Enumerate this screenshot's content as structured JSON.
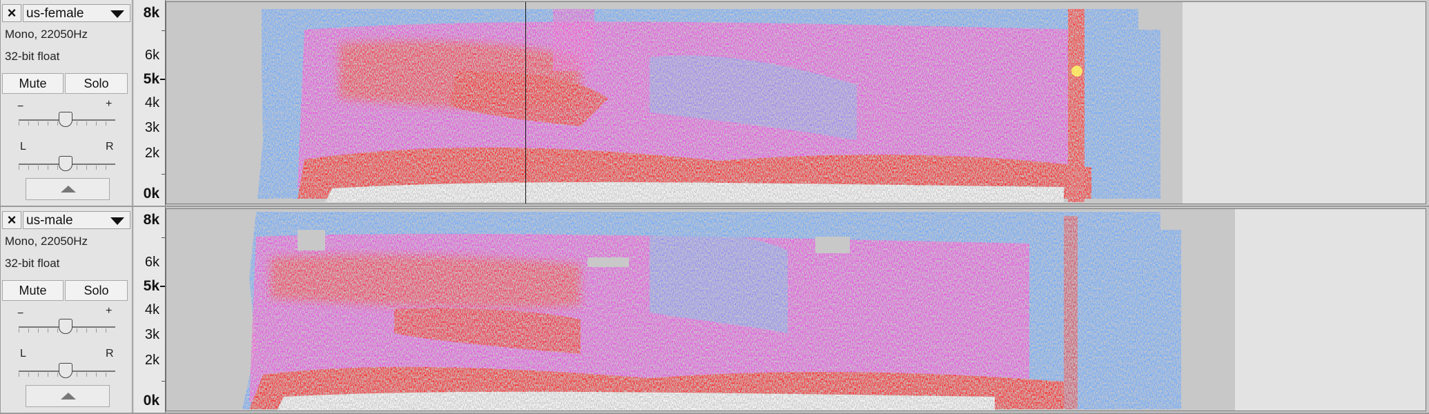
{
  "colors": {
    "spectro_low": "#6aa8ff",
    "spectro_mid": "#ff33dd",
    "spectro_high": "#ff2222",
    "spectro_peak": "#ffffff",
    "empty_region": "#c8c8c8",
    "beyond_end": "#e3e3e3"
  },
  "tracks": [
    {
      "name": "us-female",
      "format": "Mono, 22050Hz",
      "sample_format": "32-bit float",
      "mute_label": "Mute",
      "solo_label": "Solo",
      "gain_minus": "−",
      "gain_plus": "+",
      "pan_left": "L",
      "pan_right": "R",
      "close_icon": "×",
      "frequency_labels": [
        "8k",
        "6k",
        "5k",
        "4k",
        "3k",
        "2k",
        "0k"
      ],
      "has_cursor": true
    },
    {
      "name": "us-male",
      "format": "Mono, 22050Hz",
      "sample_format": "32-bit float",
      "mute_label": "Mute",
      "solo_label": "Solo",
      "gain_minus": "−",
      "gain_plus": "+",
      "pan_left": "L",
      "pan_right": "R",
      "close_icon": "×",
      "frequency_labels": [
        "8k",
        "6k",
        "5k",
        "4k",
        "3k",
        "2k",
        "0k"
      ],
      "has_cursor": false
    }
  ]
}
